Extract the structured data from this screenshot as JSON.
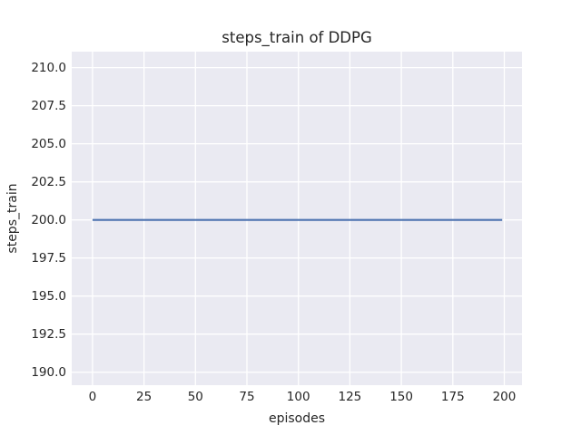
{
  "chart_data": {
    "type": "line",
    "title": "steps_train of DDPG",
    "xlabel": "episodes",
    "ylabel": "steps_train",
    "xlim": [
      -10.1,
      208.6
    ],
    "ylim": [
      189.15,
      211.05
    ],
    "xticks": [
      0,
      25,
      50,
      75,
      100,
      125,
      150,
      175,
      200
    ],
    "xtick_labels": [
      "0",
      "25",
      "50",
      "75",
      "100",
      "125",
      "150",
      "175",
      "200"
    ],
    "yticks": [
      190.0,
      192.5,
      195.0,
      197.5,
      200.0,
      202.5,
      205.0,
      207.5,
      210.0
    ],
    "ytick_labels": [
      "190.0",
      "192.5",
      "195.0",
      "197.5",
      "200.0",
      "202.5",
      "205.0",
      "207.5",
      "210.0"
    ],
    "grid": true,
    "legend": null,
    "series": [
      {
        "name": "steps_train",
        "x": [
          0,
          199
        ],
        "y": [
          200,
          200
        ],
        "color": "#4c72b0"
      }
    ],
    "colors": {
      "figure_background": "#ffffff",
      "axes_background": "#eaeaf2",
      "grid": "#ffffff",
      "text": "#262626"
    }
  }
}
